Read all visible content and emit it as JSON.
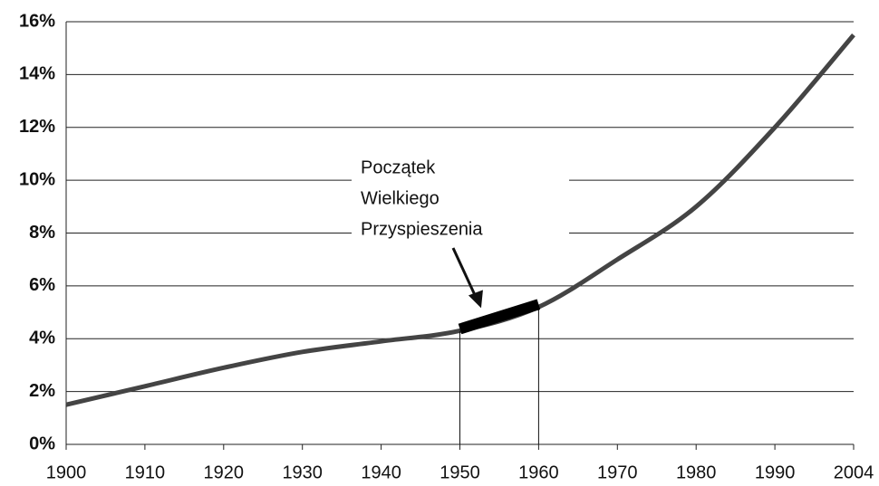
{
  "chart_data": {
    "type": "line",
    "categories": [
      "1900",
      "1910",
      "1920",
      "1930",
      "1940",
      "1950",
      "1960",
      "1970",
      "1980",
      "1990",
      "2004"
    ],
    "series": [
      {
        "color": "#444444",
        "values": [
          1.5,
          2.2,
          2.9,
          3.5,
          3.9,
          4.3,
          5.2,
          7.0,
          9.0,
          12.0,
          15.5
        ]
      }
    ],
    "ylim": [
      0,
      16
    ],
    "yticks": [
      {
        "value": 0,
        "label": "0%"
      },
      {
        "value": 2,
        "label": "2%"
      },
      {
        "value": 4,
        "label": "4%"
      },
      {
        "value": 6,
        "label": "6%"
      },
      {
        "value": 8,
        "label": "8%"
      },
      {
        "value": 10,
        "label": "10%"
      },
      {
        "value": 12,
        "label": "12%"
      },
      {
        "value": 14,
        "label": "14%"
      },
      {
        "value": 16,
        "label": "16%"
      }
    ],
    "grid": true,
    "annotation": {
      "lines": [
        "Początek",
        "Wielkiego",
        "Przyspieszenia"
      ],
      "highlight": [
        "1950",
        "1960"
      ],
      "color": "#000000"
    }
  }
}
